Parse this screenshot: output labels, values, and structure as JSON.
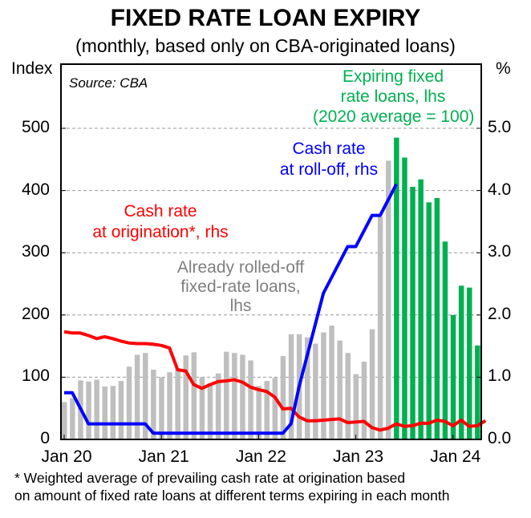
{
  "title": "FIXED RATE LOAN EXPIRY",
  "subtitle": "(monthly, based only on CBA-originated loans)",
  "source": "Source: CBA",
  "footnote": [
    "*   Weighted average of prevailing cash rate at origination based",
    "on amount of fixed rate loans at different terms expiring in each month"
  ],
  "chart_data": {
    "type": "bar+line",
    "left_axis": {
      "label": "Index",
      "ylim": [
        0,
        600
      ],
      "ticks": [
        "0",
        "100",
        "200",
        "300",
        "400",
        "500"
      ]
    },
    "right_axis": {
      "label": "%",
      "ylim": [
        0,
        6
      ],
      "ticks": [
        "0.0",
        "1.0",
        "2.0",
        "3.0",
        "4.0",
        "5.0"
      ]
    },
    "x_ticks": [
      "Jan 20",
      "Jan 21",
      "Jan 22",
      "Jan 23",
      "Jan 24"
    ],
    "x_start": "2020-01",
    "grid": "horizontal dashed",
    "series": [
      {
        "name": "Already rolled-off fixed-rate loans, lhs",
        "label": [
          "Already rolled-off",
          "fixed-rate loans,",
          "lhs"
        ],
        "type": "bar",
        "color": "#bfbfbf",
        "values": [
          60,
          66,
          95,
          93,
          96,
          85,
          86,
          94,
          117,
          136,
          139,
          112,
          100,
          108,
          114,
          135,
          140,
          100,
          90,
          106,
          141,
          139,
          136,
          127,
          86,
          94,
          99,
          134,
          169,
          169,
          164,
          154,
          172,
          183,
          159,
          139,
          105,
          125,
          177,
          358,
          448
        ]
      },
      {
        "name": "Expiring fixed rate loans, lhs (2020 average = 100)",
        "label": [
          "Expiring fixed",
          "rate loans, lhs",
          "(2020 average = 100)"
        ],
        "type": "bar",
        "color": "#00b050",
        "values": [
          485,
          453,
          406,
          418,
          381,
          388,
          318,
          200,
          247,
          244,
          151
        ]
      },
      {
        "name": "Cash rate at origination*, rhs",
        "label": [
          "Cash rate",
          "at origination*, rhs"
        ],
        "type": "line",
        "color": "#ff0000",
        "values": [
          1.73,
          1.71,
          1.71,
          1.67,
          1.62,
          1.65,
          1.62,
          1.58,
          1.55,
          1.54,
          1.54,
          1.53,
          1.51,
          1.47,
          1.12,
          1.1,
          0.88,
          0.82,
          0.88,
          0.93,
          0.94,
          0.96,
          0.92,
          0.84,
          0.8,
          0.77,
          0.68,
          0.49,
          0.5,
          0.36,
          0.3,
          0.3,
          0.31,
          0.32,
          0.33,
          0.27,
          0.28,
          0.29,
          0.19,
          0.15,
          0.18,
          0.25,
          0.21,
          0.22,
          0.26,
          0.26,
          0.31,
          0.29,
          0.22,
          0.31,
          0.21,
          0.22,
          0.3
        ]
      },
      {
        "name": "Cash rate at roll-off, rhs",
        "label": [
          "Cash rate",
          "at roll-off, rhs"
        ],
        "type": "line",
        "color": "#0000ff",
        "values": [
          0.75,
          0.75,
          0.5,
          0.25,
          0.25,
          0.25,
          0.25,
          0.25,
          0.25,
          0.25,
          0.25,
          0.1,
          0.1,
          0.1,
          0.1,
          0.1,
          0.1,
          0.1,
          0.1,
          0.1,
          0.1,
          0.1,
          0.1,
          0.1,
          0.1,
          0.1,
          0.1,
          0.1,
          0.25,
          0.85,
          1.35,
          1.85,
          2.35,
          2.6,
          2.85,
          3.1,
          3.1,
          3.35,
          3.6,
          3.6,
          3.85,
          4.1
        ]
      }
    ]
  }
}
